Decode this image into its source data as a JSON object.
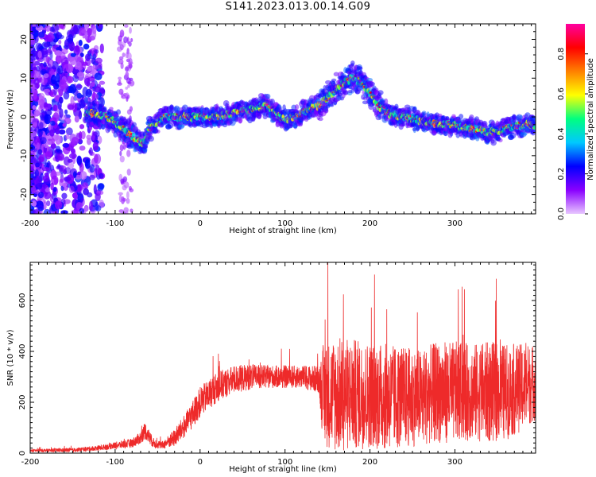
{
  "title": "S141.2023.013.00.14.G09",
  "colors": {
    "snr_line": "#ee2a2a",
    "axis": "#000000",
    "background": "#ffffff"
  },
  "chart_data": [
    {
      "type": "heatmap",
      "xlabel": "Height of straight line (km)",
      "ylabel": "Frequency (Hz)",
      "xlim": [
        -200,
        395
      ],
      "ylim": [
        -25,
        24
      ],
      "xticks": [
        -200,
        -100,
        0,
        100,
        200,
        300
      ],
      "yticks": [
        -20,
        -10,
        0,
        10,
        20
      ],
      "colorbar": {
        "label": "Normalized spectral amplitude",
        "range": [
          0,
          0.95
        ],
        "ticks": [
          0.0,
          0.2,
          0.4,
          0.6,
          0.8
        ],
        "colormap": [
          "#e8c6ff",
          "#8a00ff",
          "#0000ff",
          "#00c8ff",
          "#00ff80",
          "#ffff00",
          "#ff8000",
          "#ff0000",
          "#ff00a0"
        ]
      },
      "ridge": {
        "x": [
          -130,
          -110,
          -95,
          -85,
          -75,
          -68,
          -60,
          -50,
          -40,
          -20,
          0,
          20,
          40,
          60,
          80,
          90,
          100,
          110,
          120,
          130,
          140,
          150,
          160,
          170,
          180,
          190,
          200,
          210,
          220,
          240,
          260,
          280,
          300,
          320,
          340,
          360,
          380,
          395
        ],
        "y": [
          1,
          0,
          -2,
          -4,
          -6,
          -7,
          -3,
          -1,
          0,
          0,
          0,
          0,
          1,
          2,
          3,
          1,
          -1,
          0,
          1,
          2,
          3,
          5,
          7,
          9,
          10,
          9,
          6,
          3,
          1,
          0,
          -1,
          -2,
          -2,
          -3,
          -4,
          -3,
          -2,
          -2
        ]
      }
    },
    {
      "type": "line",
      "xlabel": "Height of straight line (km)",
      "ylabel": "SNR (10 * v/v)",
      "xlim": [
        -200,
        395
      ],
      "ylim": [
        0,
        750
      ],
      "xticks": [
        -200,
        -100,
        0,
        100,
        200,
        300
      ],
      "yticks": [
        0,
        200,
        400,
        600
      ],
      "envelope": {
        "x": [
          -200,
          -150,
          -120,
          -100,
          -80,
          -70,
          -65,
          -55,
          -45,
          -30,
          -15,
          0,
          20,
          40,
          60,
          80,
          100,
          120,
          140,
          145,
          160,
          180,
          200,
          220,
          240,
          260,
          280,
          300,
          320,
          340,
          360,
          380,
          395
        ],
        "mean": [
          10,
          12,
          20,
          30,
          40,
          60,
          90,
          40,
          30,
          60,
          120,
          200,
          260,
          290,
          300,
          300,
          300,
          300,
          290,
          230,
          230,
          230,
          230,
          220,
          220,
          220,
          240,
          240,
          240,
          240,
          240,
          260,
          280
        ],
        "spread": [
          6,
          8,
          10,
          14,
          18,
          25,
          35,
          20,
          15,
          35,
          50,
          60,
          60,
          55,
          50,
          45,
          45,
          45,
          55,
          200,
          230,
          220,
          210,
          210,
          200,
          190,
          200,
          200,
          190,
          200,
          190,
          170,
          150
        ]
      }
    }
  ]
}
